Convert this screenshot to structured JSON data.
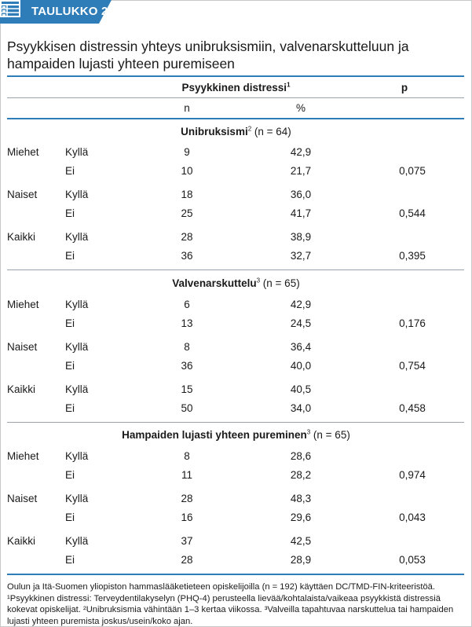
{
  "header": {
    "label": "TAULUKKO 2."
  },
  "title": "Psyykkisen distressin yhteys unibruksismiin, valvenarskutteluun ja hampaiden lujasti yhteen puremiseen",
  "columns": {
    "group": "Psyykkinen distressi",
    "group_sup": "1",
    "n": "n",
    "pct": "%",
    "p": "p"
  },
  "sections": [
    {
      "title": "Unibruksismi",
      "sup": "2",
      "count": " (n = 64)",
      "groups": [
        {
          "label": "Miehet",
          "rows": [
            {
              "answer": "Kyllä",
              "n": "9",
              "pct": "42,9",
              "p": ""
            },
            {
              "answer": "Ei",
              "n": "10",
              "pct": "21,7",
              "p": "0,075"
            }
          ]
        },
        {
          "label": "Naiset",
          "rows": [
            {
              "answer": "Kyllä",
              "n": "18",
              "pct": "36,0",
              "p": ""
            },
            {
              "answer": "Ei",
              "n": "25",
              "pct": "41,7",
              "p": "0,544"
            }
          ]
        },
        {
          "label": "Kaikki",
          "rows": [
            {
              "answer": "Kyllä",
              "n": "28",
              "pct": "38,9",
              "p": ""
            },
            {
              "answer": "Ei",
              "n": "36",
              "pct": "32,7",
              "p": "0,395"
            }
          ]
        }
      ]
    },
    {
      "title": "Valvenarskuttelu",
      "sup": "3",
      "count": " (n = 65)",
      "groups": [
        {
          "label": "Miehet",
          "rows": [
            {
              "answer": "Kyllä",
              "n": "6",
              "pct": "42,9",
              "p": ""
            },
            {
              "answer": "Ei",
              "n": "13",
              "pct": "24,5",
              "p": "0,176"
            }
          ]
        },
        {
          "label": "Naiset",
          "rows": [
            {
              "answer": "Kyllä",
              "n": "8",
              "pct": "36,4",
              "p": ""
            },
            {
              "answer": "Ei",
              "n": "36",
              "pct": "40,0",
              "p": "0,754"
            }
          ]
        },
        {
          "label": "Kaikki",
          "rows": [
            {
              "answer": "Kyllä",
              "n": "15",
              "pct": "40,5",
              "p": ""
            },
            {
              "answer": "Ei",
              "n": "50",
              "pct": "34,0",
              "p": "0,458"
            }
          ]
        }
      ]
    },
    {
      "title": "Hampaiden lujasti yhteen pureminen",
      "sup": "3",
      "count": " (n = 65)",
      "groups": [
        {
          "label": "Miehet",
          "rows": [
            {
              "answer": "Kyllä",
              "n": "8",
              "pct": "28,6",
              "p": ""
            },
            {
              "answer": "Ei",
              "n": "11",
              "pct": "28,2",
              "p": "0,974"
            }
          ]
        },
        {
          "label": "Naiset",
          "rows": [
            {
              "answer": "Kyllä",
              "n": "28",
              "pct": "48,3",
              "p": ""
            },
            {
              "answer": "Ei",
              "n": "16",
              "pct": "29,6",
              "p": "0,043"
            }
          ]
        },
        {
          "label": "Kaikki",
          "rows": [
            {
              "answer": "Kyllä",
              "n": "37",
              "pct": "42,5",
              "p": ""
            },
            {
              "answer": "Ei",
              "n": "28",
              "pct": "28,9",
              "p": "0,053"
            }
          ]
        }
      ]
    }
  ],
  "footnote": "Oulun ja Itä-Suomen yliopiston hammaslääketieteen opiskelijoilla (n = 192) käyttäen DC/TMD-FIN-kriteeristöä. ¹Psyykkinen distressi: Terveydentilakyselyn (PHQ-4) perusteella lievää/kohtalaista/vaikeaa psyykkistä distressiä kokevat opiskelijat. ²Unibruksismia vähintään 1–3 kertaa viikossa. ³Valveilla tapahtuvaa narskuttelua tai hampaiden lujasti yhteen puremista joskus/usein/koko ajan.",
  "colors": {
    "accent": "#2e7db8",
    "tab": "#2e7db8"
  },
  "icons": {
    "tab": "table-icon"
  }
}
